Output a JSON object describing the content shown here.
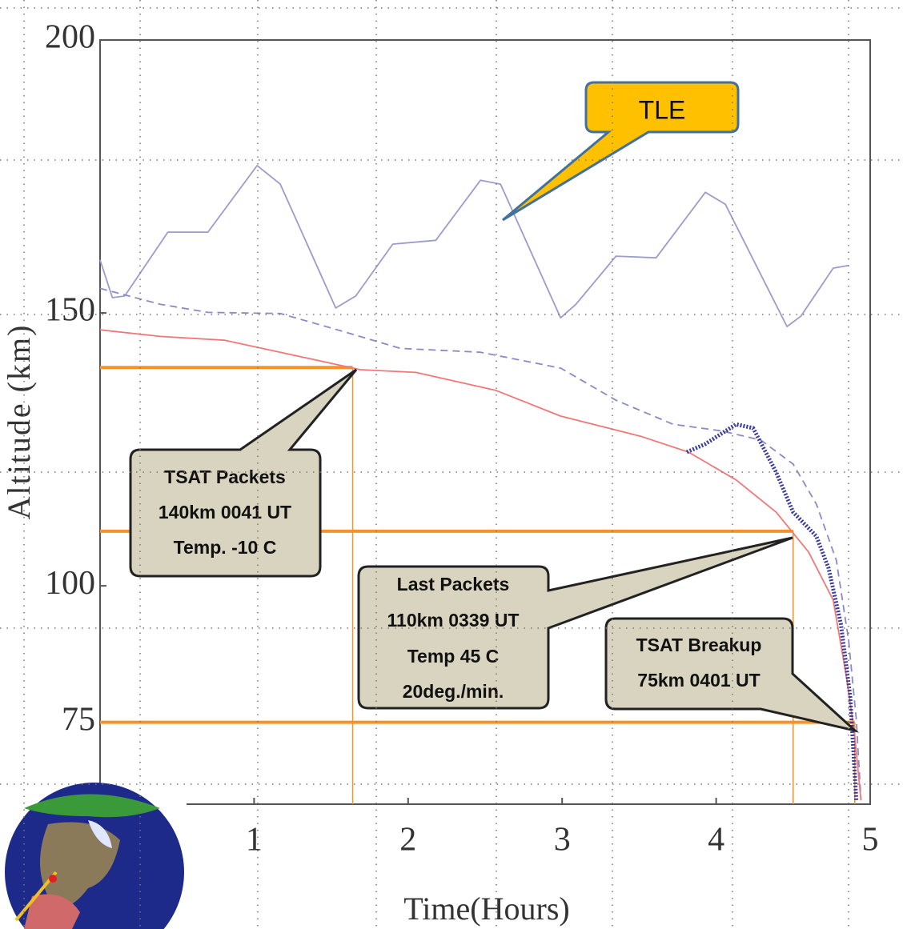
{
  "chart_data": {
    "type": "line",
    "x_label": "Time(Hours)",
    "y_label": "Altitude (km)",
    "xlim": [
      0,
      5
    ],
    "xticks": [
      1,
      2,
      3,
      4,
      5
    ],
    "ylim": [
      60,
      200
    ],
    "yticks": [
      75,
      100,
      150,
      200
    ],
    "series": [
      {
        "color": "#9c9ccc",
        "style": "solid",
        "x": [
          0,
          0.08,
          0.16,
          0.44,
          0.7,
          1.02,
          1.17,
          1.53,
          1.66,
          1.9,
          2.18,
          2.47,
          2.6,
          2.99,
          3.09,
          3.35,
          3.61,
          3.93,
          4.06,
          4.46,
          4.55,
          4.76,
          4.86
        ],
        "values": [
          159.7,
          152.8,
          153.1,
          164.8,
          164.8,
          177,
          173.6,
          150.9,
          153.1,
          162.6,
          163.3,
          174.3,
          173.6,
          149.1,
          151.6,
          160.4,
          160.1,
          172.1,
          169.9,
          147.5,
          149.4,
          158.2,
          158.7
        ]
      },
      {
        "color": "#8a8ac6",
        "style": "dashed",
        "x": [
          0,
          0.39,
          0.7,
          1.17,
          1.59,
          1.95,
          2.47,
          2.99,
          3.35,
          3.72,
          4.03,
          4.29,
          4.5,
          4.65,
          4.78,
          4.86,
          4.91,
          4.94
        ],
        "values": [
          154.5,
          151.6,
          150.1,
          149.9,
          146.5,
          143.5,
          142.8,
          139.9,
          134,
          129.6,
          128.4,
          126.7,
          122.3,
          115,
          104.7,
          90,
          75.4,
          60.7
        ]
      },
      {
        "color": "#f07878",
        "style": "solid",
        "x": [
          0,
          0.39,
          0.81,
          1.17,
          1.69,
          2.05,
          2.57,
          2.99,
          3.51,
          3.82,
          4.13,
          4.39,
          4.6,
          4.76,
          4.85,
          4.9,
          4.94
        ],
        "values": [
          146.9,
          145.7,
          145,
          142.8,
          139.6,
          139.1,
          135.8,
          131.1,
          127.4,
          124.5,
          119.4,
          113.5,
          106.2,
          97.4,
          82.7,
          72.4,
          60.7
        ]
      },
      {
        "color": "#3a3a9c",
        "style": "dotted",
        "x": [
          3.81,
          3.93,
          4.13,
          4.24,
          4.39,
          4.5,
          4.65,
          4.73,
          4.81,
          4.87,
          4.91
        ],
        "values": [
          124.5,
          126,
          129.6,
          128.9,
          120.8,
          113.5,
          109.1,
          103.2,
          93,
          79.8,
          60.7
        ]
      }
    ],
    "reference_lines": [
      {
        "y": 140,
        "x": 1.64
      },
      {
        "y": 110,
        "x": 4.5
      },
      {
        "y": 75,
        "x": 4.9
      }
    ],
    "reference_color": "#f5922a",
    "callouts": [
      {
        "lines": [
          "TSAT Packets",
          "140km 0041 UT",
          "Temp. -10 C"
        ]
      },
      {
        "lines": [
          "Last Packets",
          "110km 0339 UT",
          "Temp 45 C",
          "20deg./min."
        ]
      },
      {
        "lines": [
          "TSAT Breakup",
          "75km 0401 UT"
        ]
      }
    ],
    "tle_label": "TLE"
  }
}
